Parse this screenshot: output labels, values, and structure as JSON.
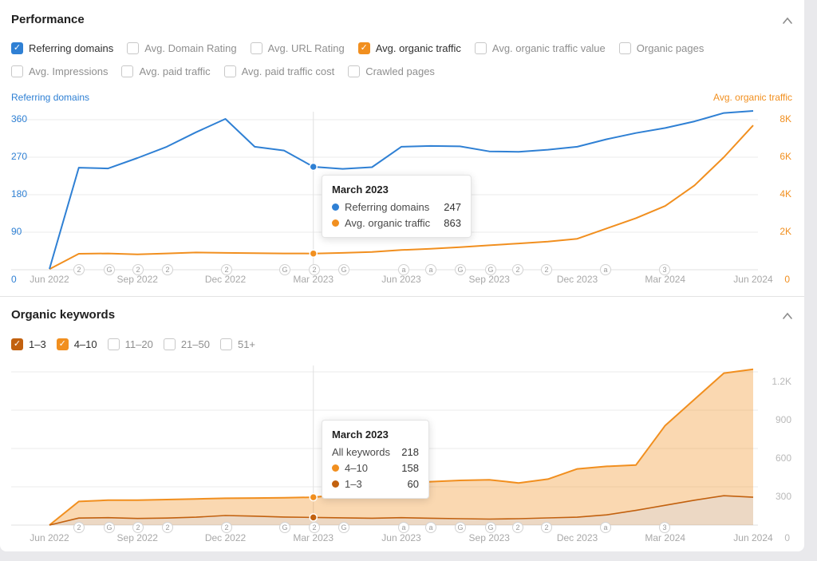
{
  "colors": {
    "blue": "#2f80d4",
    "orange": "#f18f1f",
    "dark_orange": "#c2610f",
    "grid": "#ebebeb",
    "hover_line": "#e0e0e0",
    "month_text": "#a8a8a8",
    "chart2_tick_text": "#b9b9b9",
    "band_fill": "rgba(241,143,31,0.35)",
    "base_fill": "rgba(186,115,42,0.28)"
  },
  "performance": {
    "title": "Performance",
    "collapse_icon": "chevron-up",
    "filters_row1": [
      {
        "label": "Referring domains",
        "checked": true,
        "color_key": "blue"
      },
      {
        "label": "Avg. Domain Rating",
        "checked": false
      },
      {
        "label": "Avg. URL Rating",
        "checked": false
      },
      {
        "label": "Avg. organic traffic",
        "checked": true,
        "color_key": "orange"
      },
      {
        "label": "Avg. organic traffic value",
        "checked": false
      },
      {
        "label": "Organic pages",
        "checked": false
      }
    ],
    "filters_row2": [
      {
        "label": "Avg. Impressions",
        "checked": false
      },
      {
        "label": "Avg. paid traffic",
        "checked": false
      },
      {
        "label": "Avg. paid traffic cost",
        "checked": false
      },
      {
        "label": "Crawled pages",
        "checked": false
      }
    ],
    "axis_left_label": "Referring domains",
    "axis_right_label": "Avg. organic traffic",
    "tooltip": {
      "title": "March 2023",
      "rows": [
        {
          "label": "Referring domains",
          "value": "247",
          "dot": "blue"
        },
        {
          "label": "Avg. organic traffic",
          "value": "863",
          "dot": "orange"
        }
      ]
    }
  },
  "organic": {
    "title": "Organic keywords",
    "collapse_icon": "chevron-up",
    "filters": [
      {
        "label": "1–3",
        "checked": true,
        "color_key": "dark_orange"
      },
      {
        "label": "4–10",
        "checked": true,
        "color_key": "orange"
      },
      {
        "label": "11–20",
        "checked": false
      },
      {
        "label": "21–50",
        "checked": false
      },
      {
        "label": "51+",
        "checked": false
      }
    ],
    "tooltip": {
      "title": "March 2023",
      "rows": [
        {
          "label": "All keywords",
          "value": "218"
        },
        {
          "label": "4–10",
          "value": "158",
          "dot": "orange"
        },
        {
          "label": "1–3",
          "value": "60",
          "dot": "dark_orange"
        }
      ]
    }
  },
  "event_markers": [
    {
      "x": 99,
      "glyph": "2"
    },
    {
      "x": 137,
      "glyph": "G"
    },
    {
      "x": 173,
      "glyph": "2"
    },
    {
      "x": 210,
      "glyph": "2"
    },
    {
      "x": 284,
      "glyph": "2"
    },
    {
      "x": 357,
      "glyph": "G"
    },
    {
      "x": 394,
      "glyph": "2"
    },
    {
      "x": 431,
      "glyph": "G"
    },
    {
      "x": 506,
      "glyph": "a"
    },
    {
      "x": 540,
      "glyph": "a"
    },
    {
      "x": 577,
      "glyph": "G"
    },
    {
      "x": 615,
      "glyph": "G"
    },
    {
      "x": 649,
      "glyph": "2"
    },
    {
      "x": 685,
      "glyph": "2"
    },
    {
      "x": 759,
      "glyph": "a"
    },
    {
      "x": 833,
      "glyph": "3"
    }
  ],
  "chart_data": [
    {
      "type": "line",
      "title": "Performance",
      "x": [
        "Jun 2022",
        "Jul 2022",
        "Aug 2022",
        "Sep 2022",
        "Oct 2022",
        "Nov 2022",
        "Dec 2022",
        "Jan 2023",
        "Feb 2023",
        "Mar 2023",
        "Apr 2023",
        "May 2023",
        "Jun 2023",
        "Jul 2023",
        "Aug 2023",
        "Sep 2023",
        "Oct 2023",
        "Nov 2023",
        "Dec 2023",
        "Jan 2024",
        "Feb 2024",
        "Mar 2024",
        "Apr 2024",
        "May 2024",
        "Jun 2024"
      ],
      "x_tick_labels": [
        {
          "label": "Jun 2022",
          "index": 0
        },
        {
          "label": "Sep 2022",
          "index": 3
        },
        {
          "label": "Dec 2022",
          "index": 6
        },
        {
          "label": "Mar 2023",
          "index": 9
        },
        {
          "label": "Jun 2023",
          "index": 12
        },
        {
          "label": "Sep 2023",
          "index": 15
        },
        {
          "label": "Dec 2023",
          "index": 18
        },
        {
          "label": "Mar 2024",
          "index": 21
        },
        {
          "label": "Jun 2024",
          "index": 24
        }
      ],
      "series": [
        {
          "name": "Referring domains",
          "axis": "left",
          "color_key": "blue",
          "values": [
            2,
            245,
            243,
            268,
            295,
            330,
            362,
            295,
            286,
            247,
            242,
            246,
            295,
            297,
            296,
            284,
            283,
            288,
            295,
            313,
            328,
            340,
            356,
            376,
            381
          ]
        },
        {
          "name": "Avg. organic traffic",
          "axis": "right",
          "color_key": "orange",
          "values": [
            30,
            850,
            870,
            820,
            870,
            920,
            900,
            880,
            870,
            863,
            900,
            950,
            1050,
            1120,
            1200,
            1300,
            1400,
            1500,
            1650,
            2200,
            2750,
            3400,
            4500,
            6000,
            7700
          ]
        }
      ],
      "left_axis": {
        "ticks": [
          {
            "label": "0",
            "value": 0
          },
          {
            "label": "90",
            "value": 90
          },
          {
            "label": "180",
            "value": 180
          },
          {
            "label": "270",
            "value": 270
          },
          {
            "label": "360",
            "value": 360
          }
        ],
        "max": 360
      },
      "right_axis": {
        "ticks": [
          {
            "label": "0",
            "value": 0
          },
          {
            "label": "2K",
            "value": 2000
          },
          {
            "label": "4K",
            "value": 4000
          },
          {
            "label": "6K",
            "value": 6000
          },
          {
            "label": "8K",
            "value": 8000
          }
        ],
        "max": 8000
      },
      "grid": true,
      "legend_position": "top",
      "hover": {
        "index": 9,
        "label": "March 2023"
      }
    },
    {
      "type": "area",
      "title": "Organic keywords",
      "stacked": true,
      "x": [
        "Jun 2022",
        "Jul 2022",
        "Aug 2022",
        "Sep 2022",
        "Oct 2022",
        "Nov 2022",
        "Dec 2022",
        "Jan 2023",
        "Feb 2023",
        "Mar 2023",
        "Apr 2023",
        "May 2023",
        "Jun 2023",
        "Jul 2023",
        "Aug 2023",
        "Sep 2023",
        "Oct 2023",
        "Nov 2023",
        "Dec 2023",
        "Jan 2024",
        "Feb 2024",
        "Mar 2024",
        "Apr 2024",
        "May 2024",
        "Jun 2024"
      ],
      "x_tick_labels": [
        {
          "label": "Jun 2022",
          "index": 0
        },
        {
          "label": "Sep 2022",
          "index": 3
        },
        {
          "label": "Dec 2022",
          "index": 6
        },
        {
          "label": "Mar 2023",
          "index": 9
        },
        {
          "label": "Jun 2023",
          "index": 12
        },
        {
          "label": "Sep 2023",
          "index": 15
        },
        {
          "label": "Dec 2023",
          "index": 18
        },
        {
          "label": "Mar 2024",
          "index": 21
        },
        {
          "label": "Jun 2024",
          "index": 24
        }
      ],
      "series": [
        {
          "name": "1–3",
          "color_key": "dark_orange",
          "values": [
            0,
            55,
            58,
            52,
            55,
            62,
            75,
            70,
            63,
            60,
            57,
            54,
            58,
            54,
            50,
            47,
            50,
            56,
            62,
            80,
            115,
            155,
            195,
            230,
            218
          ]
        },
        {
          "name": "4–10",
          "color_key": "orange",
          "values": [
            0,
            130,
            137,
            143,
            145,
            143,
            135,
            142,
            151,
            158,
            183,
            236,
            267,
            286,
            300,
            308,
            280,
            304,
            378,
            380,
            355,
            625,
            790,
            960,
            1002
          ]
        }
      ],
      "right_axis": {
        "ticks": [
          {
            "label": "0",
            "value": 0
          },
          {
            "label": "300",
            "value": 300
          },
          {
            "label": "600",
            "value": 600
          },
          {
            "label": "900",
            "value": 900
          },
          {
            "label": "1.2K",
            "value": 1200
          }
        ],
        "max": 1200
      },
      "grid": true,
      "hover": {
        "index": 9,
        "label": "March 2023"
      }
    }
  ]
}
